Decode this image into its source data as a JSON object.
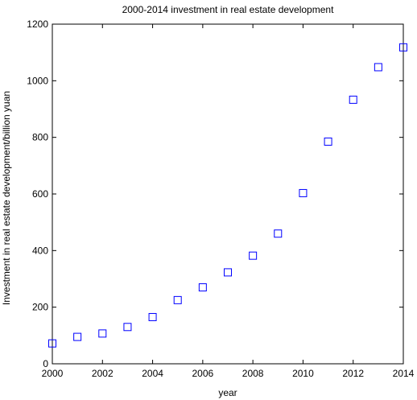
{
  "chart_data": {
    "type": "scatter",
    "title": "2000-2014 investment in real estate development",
    "xlabel": "year",
    "ylabel": "Investment in real estate development/billion yuan",
    "xlim": [
      2000,
      2014
    ],
    "ylim": [
      0,
      1200
    ],
    "xticks": [
      2000,
      2002,
      2004,
      2006,
      2008,
      2010,
      2012,
      2014
    ],
    "yticks": [
      0,
      200,
      400,
      600,
      800,
      1000,
      1200
    ],
    "grid": false,
    "marker": "square-open",
    "series": [
      {
        "color": "#0000ff",
        "x": [
          2000,
          2001,
          2002,
          2003,
          2004,
          2005,
          2006,
          2007,
          2008,
          2009,
          2010,
          2011,
          2012,
          2013,
          2014
        ],
        "y": [
          72,
          95,
          107,
          130,
          165,
          225,
          270,
          323,
          382,
          460,
          603,
          785,
          933,
          1048,
          1118
        ]
      }
    ]
  }
}
